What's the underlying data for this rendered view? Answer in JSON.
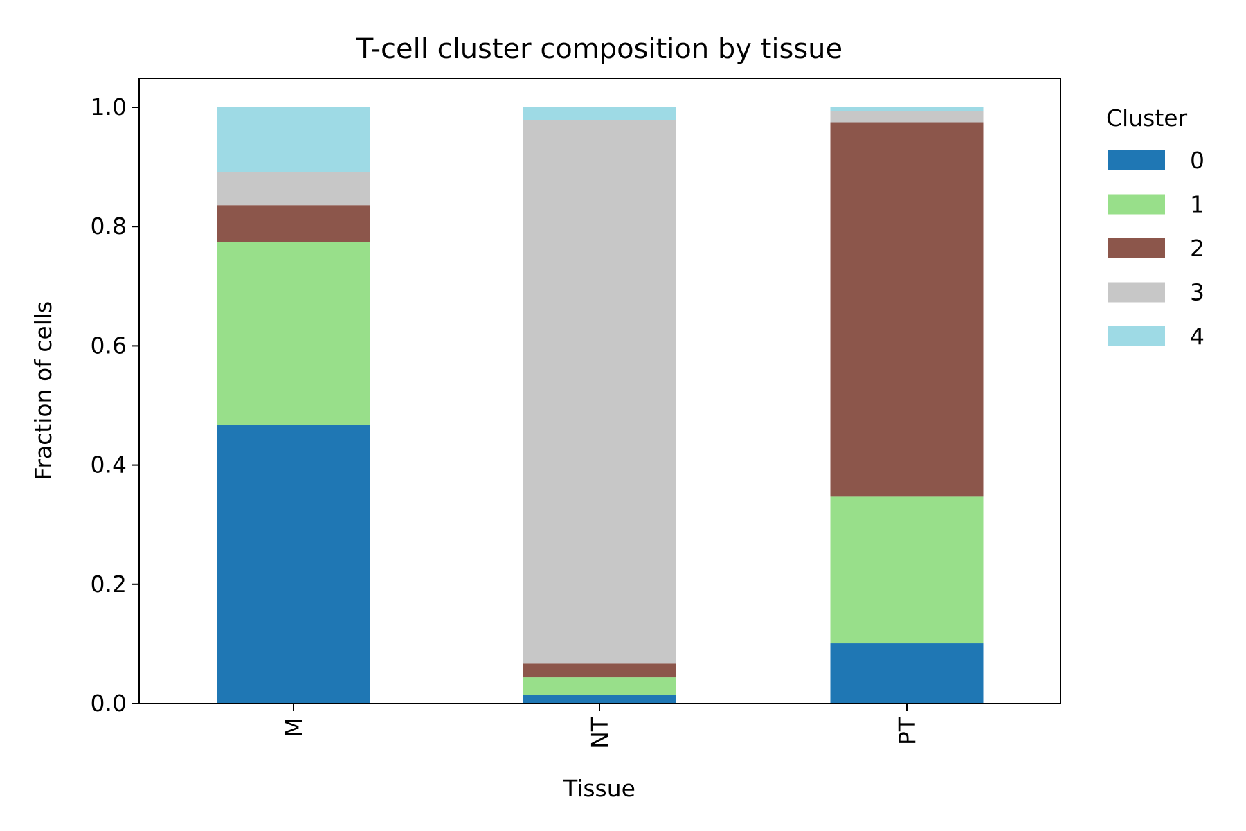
{
  "chart_data": {
    "type": "bar",
    "stacked": true,
    "title": "T-cell cluster composition by tissue",
    "xlabel": "Tissue",
    "ylabel": "Fraction of cells",
    "categories": [
      "M",
      "NT",
      "PT"
    ],
    "ylim": [
      0,
      1.05
    ],
    "yticks": [
      "0.0",
      "0.2",
      "0.4",
      "0.6",
      "0.8",
      "1.0"
    ],
    "ytick_values": [
      0,
      0.2,
      0.4,
      0.6,
      0.8,
      1.0
    ],
    "grid": false,
    "legend": {
      "title": "Cluster",
      "placement": "outside-right"
    },
    "series": [
      {
        "name": "0",
        "color": "#1f77b4",
        "values": [
          0.468,
          0.015,
          0.101
        ]
      },
      {
        "name": "1",
        "color": "#98df8a",
        "values": [
          0.306,
          0.029,
          0.247
        ]
      },
      {
        "name": "2",
        "color": "#8c564b",
        "values": [
          0.062,
          0.023,
          0.627
        ]
      },
      {
        "name": "3",
        "color": "#c7c7c7",
        "values": [
          0.055,
          0.911,
          0.019
        ]
      },
      {
        "name": "4",
        "color": "#9edae5",
        "values": [
          0.109,
          0.022,
          0.006
        ]
      }
    ]
  }
}
